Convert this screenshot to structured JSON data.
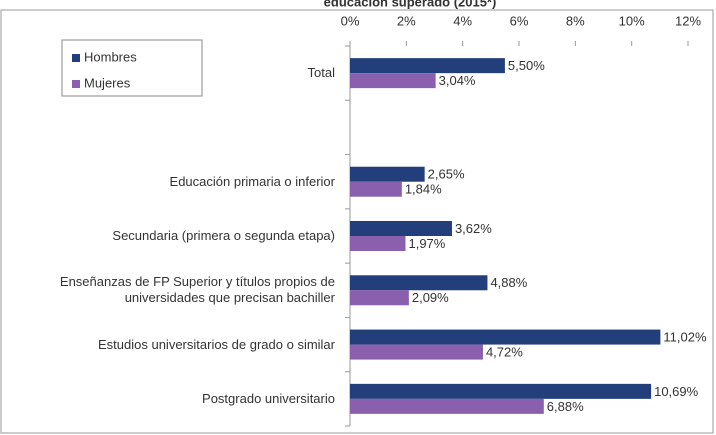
{
  "chart_data": {
    "type": "hbar",
    "title": "educación superado (2015*)",
    "categories": [
      "Total",
      null,
      "Educación primaria o inferior",
      "Secundaria (primera o segunda etapa)",
      "Enseñanzas de FP Superior y títulos propios de universidades que precisan bachiller",
      "Estudios universitarios de grado o similar",
      "Postgrado universitario"
    ],
    "series": [
      {
        "name": "Hombres",
        "color": "#223f7b",
        "values": [
          5.5,
          null,
          2.65,
          3.62,
          4.88,
          11.02,
          10.69
        ],
        "value_labels": [
          "5,50%",
          null,
          "2,65%",
          "3,62%",
          "4,88%",
          "11,02%",
          "10,69%"
        ]
      },
      {
        "name": "Mujeres",
        "color": "#8a5fae",
        "values": [
          3.04,
          null,
          1.84,
          1.97,
          2.09,
          4.72,
          6.88
        ],
        "value_labels": [
          "3,04%",
          null,
          "1,84%",
          "1,97%",
          "2,09%",
          "4,72%",
          "6,88%"
        ]
      }
    ],
    "xlim": [
      0,
      12
    ],
    "xticks": [
      {
        "value": 0,
        "label": "0%"
      },
      {
        "value": 2,
        "label": "2%"
      },
      {
        "value": 4,
        "label": "4%"
      },
      {
        "value": 6,
        "label": "6%"
      },
      {
        "value": 8,
        "label": "8%"
      },
      {
        "value": 10,
        "label": "10%"
      },
      {
        "value": 12,
        "label": "12%"
      }
    ],
    "legend": "top-left"
  }
}
